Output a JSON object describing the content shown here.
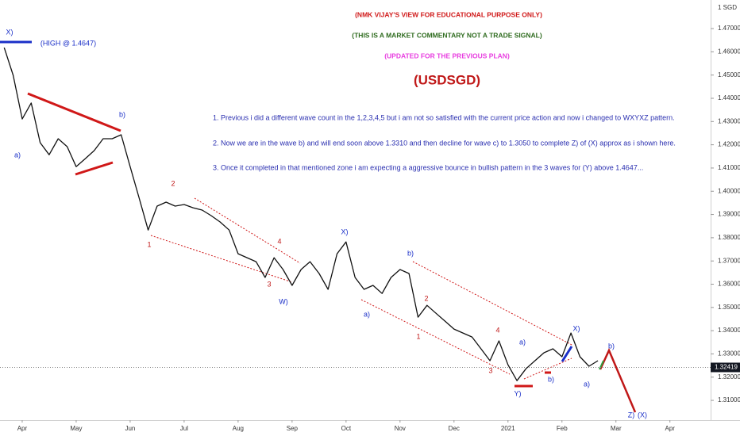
{
  "chart_data": {
    "type": "line",
    "header": [
      "(NMK VIJAY'S VIEW FOR EDUCATIONAL PURPOSE ONLY)",
      "(THIS IS A MARKET COMMENTARY NOT A TRADE SIGNAL)",
      "(UPDATED FOR THE PREVIOUS PLAN)"
    ],
    "title": "(USDSGD)",
    "notes": [
      "1. Previous i did a different wave count in the 1,2,3,4,5 but i am not so satisfied with the current price action and now i changed to WXYXZ pattern.",
      "2. Now we are in the wave b) and will end soon above 1.3310 and then decline for wave c) to 1.3050 to complete Z) of (X) approx as i shown here.",
      "3. Once it completed in that mentioned zone i am expecting a aggressive bounce in bullish pattern in the 3 waves for (Y) above 1.4647..."
    ],
    "unit": "1 SGD",
    "annotations": [
      "X)",
      "(HIGH @ 1.4647)",
      "a)",
      "b)",
      "1",
      "2",
      "3",
      "4",
      "W)",
      "X)",
      "a)",
      "b)",
      "1",
      "2",
      "3",
      "4",
      "Y)",
      "a)",
      "b)",
      "X)",
      "a)",
      "b)",
      "Z)",
      "(X)"
    ],
    "categories": [
      null,
      null,
      "Apr",
      null,
      null,
      null,
      null,
      null,
      "May",
      null,
      null,
      null,
      null,
      null,
      "Jun",
      null,
      null,
      null,
      null,
      null,
      "Jul",
      null,
      null,
      null,
      null,
      null,
      "Aug",
      null,
      null,
      null,
      null,
      null,
      "Sep",
      null,
      null,
      null,
      null,
      null,
      "Oct",
      null,
      null,
      null,
      null,
      null,
      "Nov",
      null,
      null,
      null,
      null,
      null,
      "Dec",
      null,
      null,
      null,
      null,
      null,
      "2021",
      null,
      null,
      null,
      null,
      null,
      "Feb",
      null,
      null,
      null,
      null,
      null,
      "Mar",
      null,
      null,
      null,
      null,
      null,
      "Apr"
    ],
    "values": [
      1.4618,
      1.4499,
      1.4311,
      1.438,
      1.4209,
      1.4157,
      1.4226,
      1.4192,
      1.4106,
      1.414,
      1.4175,
      1.4226,
      1.4226,
      1.4243,
      1.4106,
      1.397,
      1.3833,
      1.3936,
      1.3953,
      1.3936,
      1.3943,
      1.3929,
      1.3919,
      1.3895,
      1.3868,
      1.3833,
      1.3731,
      1.3714,
      1.3697,
      1.3629,
      1.3714,
      1.3663,
      1.3595,
      1.3663,
      1.3697,
      1.3646,
      1.3578,
      1.3731,
      1.3782,
      1.3629,
      1.3578,
      1.3595,
      1.356,
      1.3629,
      1.3663,
      1.3646,
      1.3458,
      1.3509,
      1.3475,
      1.3441,
      1.3407,
      1.339,
      1.3373,
      1.3322,
      1.3271,
      1.3356,
      1.3253,
      1.3185,
      1.3236,
      1.3271,
      1.3305,
      1.3322,
      1.3288,
      1.339,
      1.3288,
      1.3247,
      1.3271,
      null,
      null,
      null,
      null,
      null,
      null,
      null,
      null
    ],
    "color": "#111111",
    "last_price": 1.32419,
    "ylim": [
      1.3015,
      1.4823
    ],
    "yticks": [
      {
        "value": 1.31,
        "label": "1.31000"
      },
      {
        "value": 1.32,
        "label": "1.32000"
      },
      {
        "value": 1.33,
        "label": "1.33000"
      },
      {
        "value": 1.34,
        "label": "1.34000"
      },
      {
        "value": 1.35,
        "label": "1.35000"
      },
      {
        "value": 1.36,
        "label": "1.36000"
      },
      {
        "value": 1.37,
        "label": "1.37000"
      },
      {
        "value": 1.38,
        "label": "1.38000"
      },
      {
        "value": 1.39,
        "label": "1.39000"
      },
      {
        "value": 1.4,
        "label": "1.40000"
      },
      {
        "value": 1.41,
        "label": "1.41000"
      },
      {
        "value": 1.42,
        "label": "1.42000"
      },
      {
        "value": 1.43,
        "label": "1.43000"
      },
      {
        "value": 1.44,
        "label": "1.44000"
      },
      {
        "value": 1.45,
        "label": "1.45000"
      },
      {
        "value": 1.46,
        "label": "1.46000"
      },
      {
        "value": 1.47,
        "label": "1.47000"
      }
    ],
    "grid": false
  }
}
